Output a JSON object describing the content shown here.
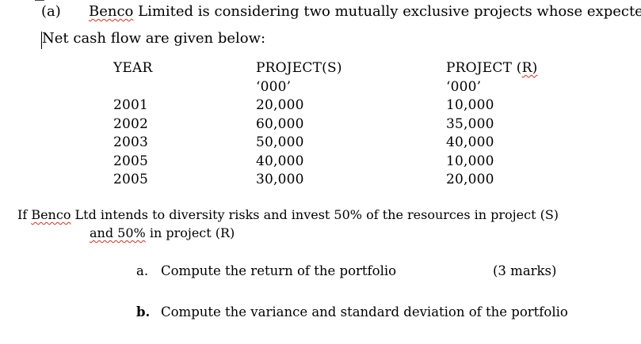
{
  "question": {
    "label": "(a)",
    "intro_company": "Benco",
    "intro_rest": " Limited is considering two mutually exclusive projects whose expected",
    "intro_line2": "Net cash flow are given below:"
  },
  "table": {
    "headers": {
      "year": "YEAR",
      "project_s": "PROJECT(S)",
      "project_r_prefix": "PROJECT (",
      "project_r_letter": "R)",
      "unit_s": "‘000’",
      "unit_r": "‘000’"
    },
    "rows": [
      {
        "year": "2001",
        "s": "20,000",
        "r": "10,000"
      },
      {
        "year": "2002",
        "s": "60,000",
        "r": "35,000"
      },
      {
        "year": "2003",
        "s": "50,000",
        "r": "40,000"
      },
      {
        "year": "2005",
        "s": "40,000",
        "r": "10,000"
      },
      {
        "year": "2005",
        "s": "30,000",
        "r": "20,000"
      }
    ]
  },
  "paragraph": {
    "prefix": "If ",
    "company": "Benco",
    "rest_line1": " Ltd intends to diversity risks and invest 50% of the resources in project (S)",
    "line2_squiggled": "and  50%",
    "line2_rest": " in project (R)"
  },
  "questions": [
    {
      "marker": "a.",
      "text": "Compute the return of the portfolio",
      "marks": "(3 marks)"
    },
    {
      "marker": "b.",
      "text": "Compute the variance and standard deviation of the portfolio"
    }
  ]
}
